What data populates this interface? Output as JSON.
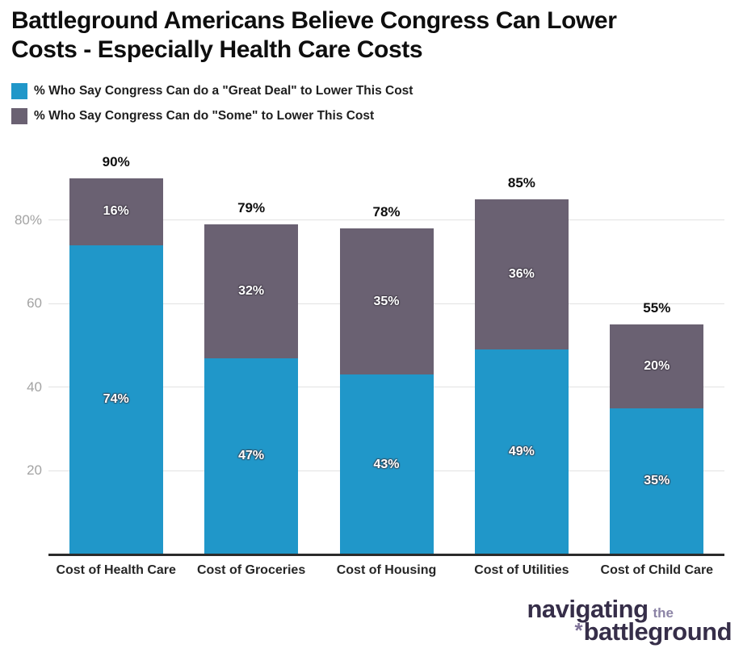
{
  "title": "Battleground Americans Believe Congress Can Lower Costs - Especially Health Care Costs",
  "legend": [
    {
      "label": "% Who Say Congress Can do a \"Great Deal\" to Lower This Cost",
      "color": "#2097c9"
    },
    {
      "label": "% Who Say Congress Can do \"Some\" to Lower This Cost",
      "color": "#6a6172"
    }
  ],
  "chart_data": {
    "type": "bar",
    "stacked": true,
    "title": "Battleground Americans Believe Congress Can Lower Costs - Especially Health Care Costs",
    "categories": [
      "Cost of Health Care",
      "Cost of Groceries",
      "Cost of Housing",
      "Cost of Utilities",
      "Cost of Child Care"
    ],
    "series": [
      {
        "name": "% Who Say Congress Can do a \"Great Deal\" to Lower This Cost",
        "color": "#2097c9",
        "values": [
          74,
          47,
          43,
          49,
          35
        ]
      },
      {
        "name": "% Who Say Congress Can do \"Some\" to Lower This Cost",
        "color": "#6a6172",
        "values": [
          16,
          32,
          35,
          36,
          20
        ]
      }
    ],
    "totals": [
      90,
      79,
      78,
      85,
      55
    ],
    "total_labels": [
      "90%",
      "79%",
      "78%",
      "85%",
      "55%"
    ],
    "y_ticks": [
      {
        "value": 20,
        "label": "20"
      },
      {
        "value": 40,
        "label": "40"
      },
      {
        "value": 60,
        "label": "60"
      },
      {
        "value": 80,
        "label": "80%"
      }
    ],
    "xlabel": "",
    "ylabel": "",
    "ylim": [
      0,
      98
    ],
    "grid": true,
    "legend_position": "top-left",
    "colors": {
      "grid": "#e2e2e2",
      "axis": "#2b2b2b",
      "y_tick_text": "#a3a3a3",
      "x_tick_text": "#262626",
      "segment_text": "#ffffff",
      "total_text": "#0f0f0f"
    }
  },
  "logo": {
    "word1": "navigating",
    "word2": "the",
    "asterisk": "*",
    "word3": "battleground",
    "dark_color": "#362e49",
    "light_color": "#8c84a6"
  }
}
